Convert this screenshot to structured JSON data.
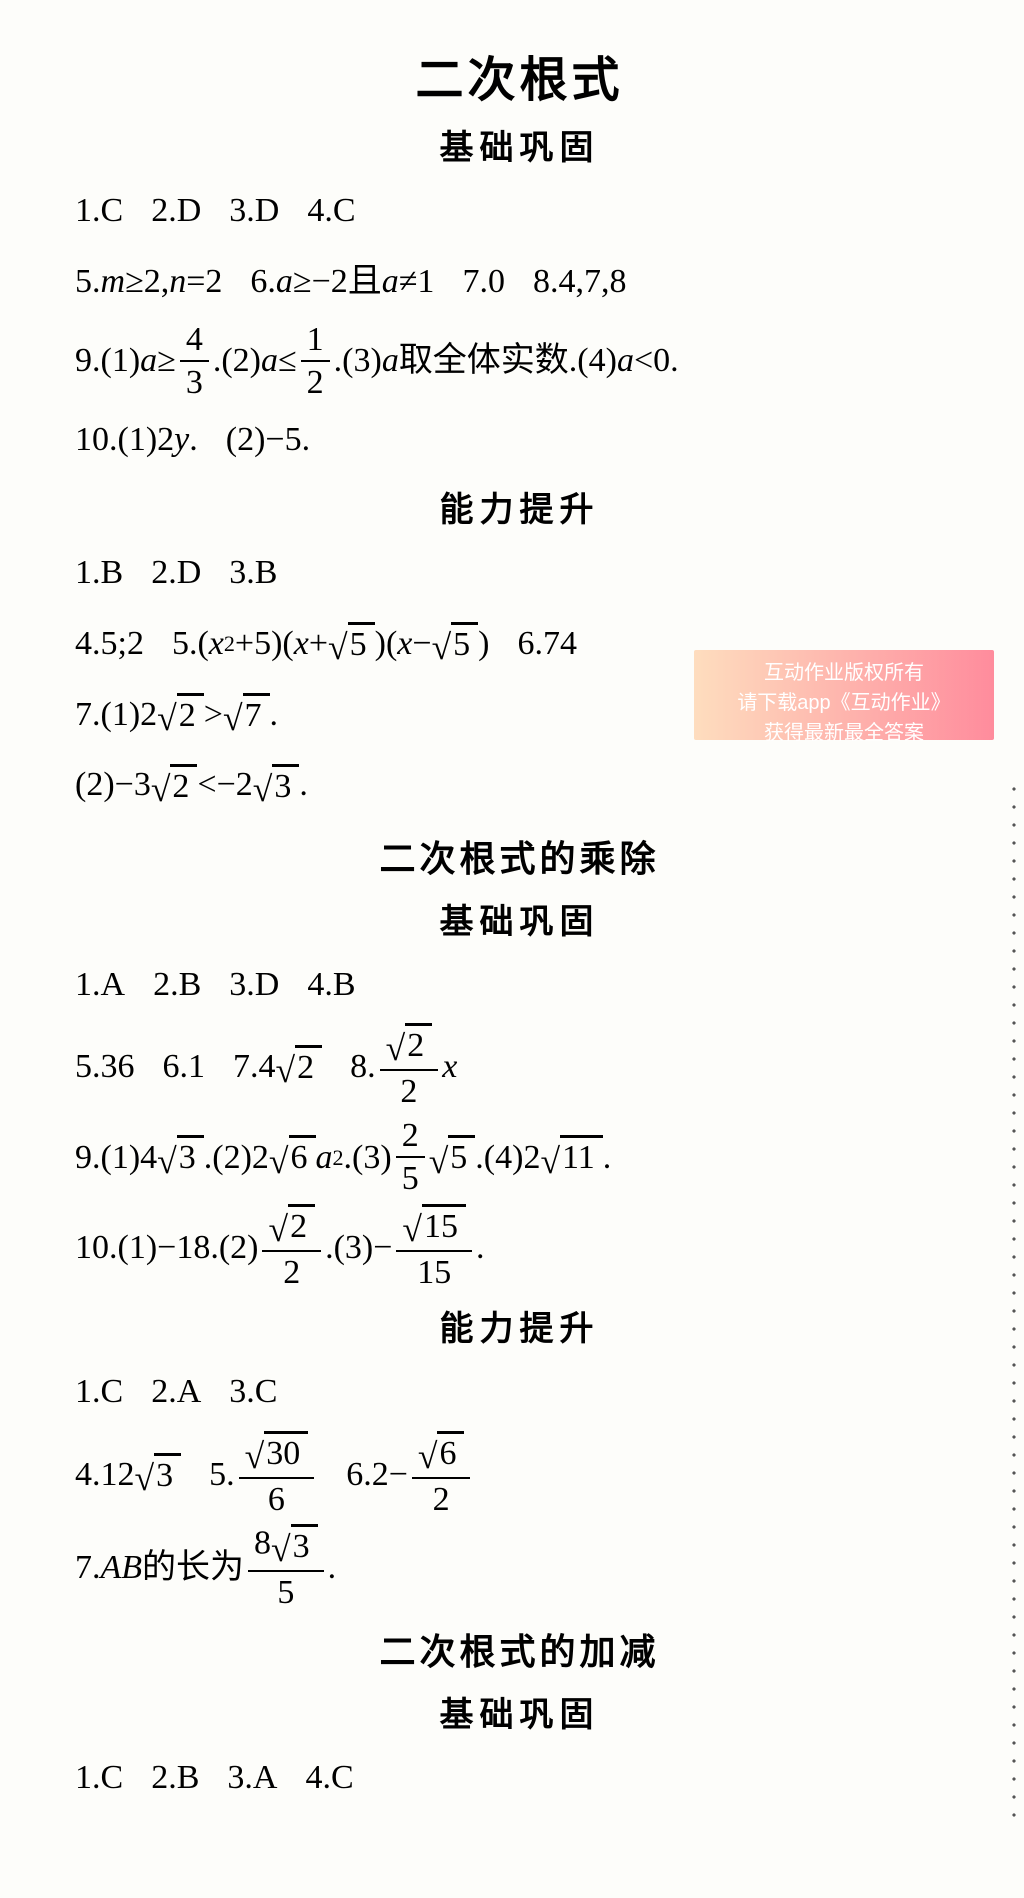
{
  "sections": [
    {
      "title_main": "二次根式",
      "subtitle": "基础巩固",
      "lines": [
        [
          {
            "t": "plain",
            "v": "1.C"
          },
          {
            "t": "plain",
            "v": "2.D"
          },
          {
            "t": "plain",
            "v": "3.D"
          },
          {
            "t": "plain",
            "v": "4.C"
          }
        ],
        [
          {
            "t": "mixed",
            "parts": [
              "5.",
              {
                "i": "m"
              },
              "≥2,",
              {
                "i": "n"
              },
              "=2"
            ]
          },
          {
            "t": "mixed",
            "parts": [
              "6.",
              {
                "i": "a"
              },
              "≥−2且",
              {
                "i": "a"
              },
              "≠1"
            ]
          },
          {
            "t": "plain",
            "v": "7.0"
          },
          {
            "t": "plain",
            "v": "8.4,7,8"
          }
        ],
        [
          {
            "t": "mixed",
            "tall": true,
            "parts": [
              "9.(1)",
              {
                "i": "a"
              },
              "≥",
              {
                "frac": [
                  "4",
                  "3"
                ]
              },
              ".(2)",
              {
                "i": "a"
              },
              "≤",
              {
                "frac": [
                  "1",
                  "2"
                ]
              },
              ".(3)",
              {
                "i": "a"
              },
              "取全体实数.(4)",
              {
                "i": "a"
              },
              "<0."
            ]
          }
        ],
        [
          {
            "t": "mixed",
            "parts": [
              "10.(1)2",
              {
                "i": "y"
              },
              "."
            ]
          },
          {
            "t": "plain",
            "v": "(2)−5."
          }
        ]
      ]
    },
    {
      "subtitle": "能力提升",
      "lines": [
        [
          {
            "t": "plain",
            "v": "1.B"
          },
          {
            "t": "plain",
            "v": "2.D"
          },
          {
            "t": "plain",
            "v": "3.B"
          }
        ],
        [
          {
            "t": "plain",
            "v": "4.5;2"
          },
          {
            "t": "mixed",
            "parts": [
              "5.(",
              {
                "i": "x"
              },
              {
                "sup": "2"
              },
              "+5)(",
              {
                "i": "x"
              },
              "+",
              {
                "sqrt": "5"
              },
              ")(",
              {
                "i": "x"
              },
              "−",
              {
                "sqrt": "5"
              },
              ")"
            ]
          },
          {
            "t": "plain",
            "v": "6.74"
          }
        ],
        [
          {
            "t": "mixed",
            "parts": [
              "7.(1)2",
              {
                "sqrt": "2"
              },
              ">",
              {
                "sqrt": "7"
              },
              "."
            ]
          }
        ],
        [
          {
            "t": "mixed",
            "parts": [
              "(2)−3",
              {
                "sqrt": "2"
              },
              "<−2",
              {
                "sqrt": "3"
              },
              "."
            ]
          }
        ]
      ]
    },
    {
      "title_sub": "二次根式的乘除",
      "subtitle": "基础巩固",
      "lines": [
        [
          {
            "t": "plain",
            "v": "1.A"
          },
          {
            "t": "plain",
            "v": "2.B"
          },
          {
            "t": "plain",
            "v": "3.D"
          },
          {
            "t": "plain",
            "v": "4.B"
          }
        ],
        [
          {
            "t": "plain",
            "v": "5.36"
          },
          {
            "t": "plain",
            "v": "6.1"
          },
          {
            "t": "mixed",
            "parts": [
              "7.4",
              {
                "sqrt": "2"
              }
            ]
          },
          {
            "t": "mixed",
            "tall": true,
            "parts": [
              "8.",
              {
                "frac": [
                  {
                    "sqrt": "2"
                  },
                  "2"
                ]
              },
              {
                "i": "x"
              }
            ]
          }
        ],
        [
          {
            "t": "mixed",
            "tall": true,
            "parts": [
              "9.(1)4",
              {
                "sqrt": "3"
              },
              ".(2)2",
              {
                "sqrt": "6"
              },
              {
                "i": "a"
              },
              {
                "sup": "2"
              },
              ".(3)",
              {
                "frac": [
                  "2",
                  "5"
                ]
              },
              {
                "sqrt": "5"
              },
              ".(4)2",
              {
                "sqrt": "11"
              },
              "."
            ]
          }
        ],
        [
          {
            "t": "mixed",
            "tall": true,
            "parts": [
              "10.(1)−18.(2)",
              {
                "frac": [
                  {
                    "sqrt": "2"
                  },
                  "2"
                ]
              },
              ".(3)−",
              {
                "frac": [
                  {
                    "sqrt": "15"
                  },
                  "15"
                ]
              },
              "."
            ]
          }
        ]
      ]
    },
    {
      "subtitle": "能力提升",
      "lines": [
        [
          {
            "t": "plain",
            "v": "1.C"
          },
          {
            "t": "plain",
            "v": "2.A"
          },
          {
            "t": "plain",
            "v": "3.C"
          }
        ],
        [
          {
            "t": "mixed",
            "tall": true,
            "parts": [
              "4.12",
              {
                "sqrt": "3"
              }
            ]
          },
          {
            "t": "mixed",
            "tall": true,
            "parts": [
              "5.",
              {
                "frac": [
                  {
                    "sqrt": "30"
                  },
                  "6"
                ]
              }
            ]
          },
          {
            "t": "mixed",
            "tall": true,
            "parts": [
              "6.2−",
              {
                "frac": [
                  {
                    "sqrt": "6"
                  },
                  "2"
                ]
              }
            ]
          }
        ],
        [
          {
            "t": "mixed",
            "tall": true,
            "parts": [
              "7.",
              {
                "i": "AB"
              },
              "的长为",
              {
                "frac": [
                  {
                    "parts": [
                      "8",
                      {
                        "sqrt": "3"
                      }
                    ]
                  },
                  "5"
                ]
              },
              "."
            ]
          }
        ]
      ]
    },
    {
      "title_sub": "二次根式的加减",
      "subtitle": "基础巩固",
      "lines": [
        [
          {
            "t": "plain",
            "v": "1.C"
          },
          {
            "t": "plain",
            "v": "2.B"
          },
          {
            "t": "plain",
            "v": "3.A"
          },
          {
            "t": "plain",
            "v": "4.C"
          }
        ]
      ]
    }
  ],
  "watermark": {
    "line1": "互动作业版权所有",
    "line2": "请下载app《互动作业》",
    "line3": "获得最新最全答案"
  }
}
